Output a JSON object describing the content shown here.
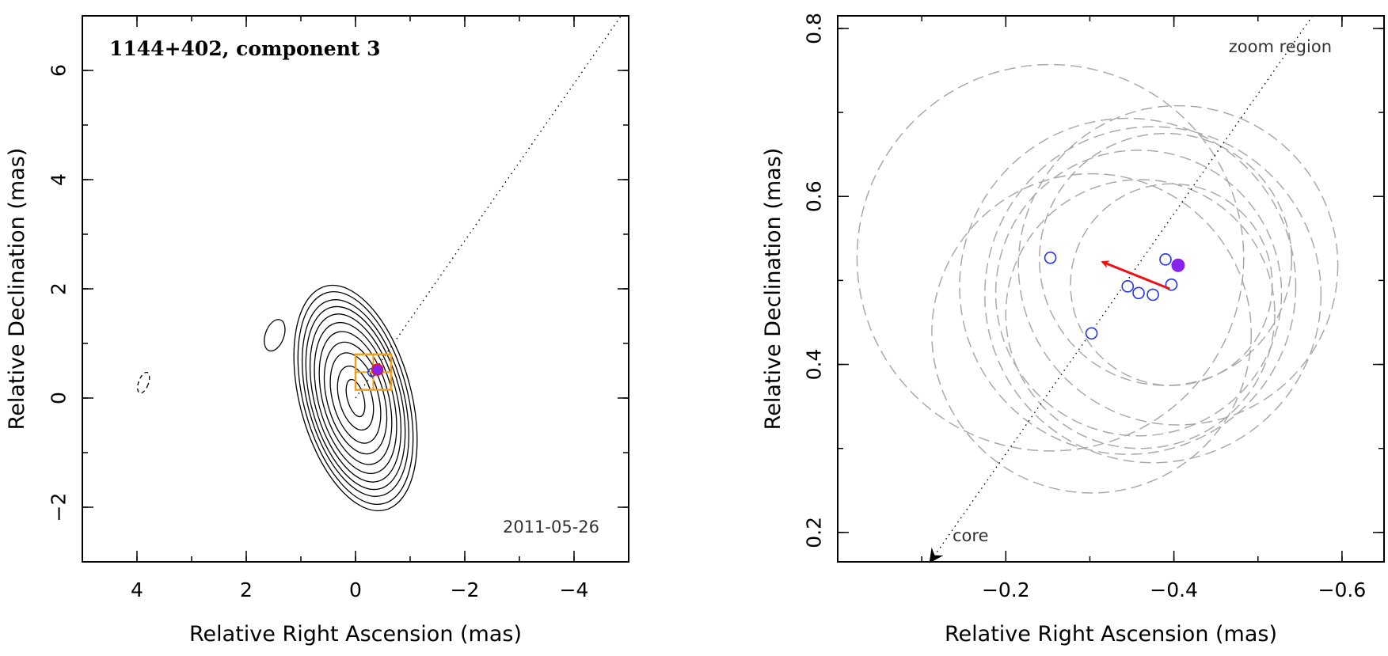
{
  "chart_data": [
    {
      "type": "scatter",
      "title": "1144+402, component 3",
      "date_label": "2011-05-26",
      "xlabel": "Relative Right Ascension (mas)",
      "ylabel": "Relative Declination (mas)",
      "xlim": [
        5,
        -5
      ],
      "ylim": [
        -3,
        7
      ],
      "x_ticks": [
        4,
        2,
        0,
        -2,
        -4
      ],
      "y_ticks": [
        -2,
        0,
        2,
        4,
        6
      ],
      "x_tick_labels": [
        "4",
        "2",
        "0",
        "−2",
        "−4"
      ],
      "y_tick_labels": [
        "−2",
        "0",
        "2",
        "4",
        "6"
      ],
      "jet_axis": {
        "from": [
          0,
          0
        ],
        "to": [
          -5,
          7.2
        ],
        "style": "dotted"
      },
      "contours": {
        "center": [
          0,
          0
        ],
        "levels": [
          {
            "rx": 0.15,
            "ry": 0.35
          },
          {
            "rx": 0.3,
            "ry": 0.6
          },
          {
            "rx": 0.42,
            "ry": 0.85
          },
          {
            "rx": 0.52,
            "ry": 1.05
          },
          {
            "rx": 0.6,
            "ry": 1.25
          },
          {
            "rx": 0.68,
            "ry": 1.42
          },
          {
            "rx": 0.75,
            "ry": 1.58
          },
          {
            "rx": 0.82,
            "ry": 1.72
          },
          {
            "rx": 0.88,
            "ry": 1.85
          },
          {
            "rx": 0.95,
            "ry": 2.0
          },
          {
            "rx": 1.02,
            "ry": 2.12
          }
        ],
        "tilt_deg": -15,
        "isolated": [
          {
            "x": 1.48,
            "y": 1.15,
            "rx": 0.17,
            "ry": 0.3,
            "dashed": false
          },
          {
            "x": 3.88,
            "y": 0.28,
            "rx": 0.09,
            "ry": 0.2,
            "dashed": true
          }
        ]
      },
      "zoom_box": {
        "x_min": -0.65,
        "x_max": 0.0,
        "y_min": 0.15,
        "y_max": 0.8,
        "color": "#f0a020"
      },
      "marker": {
        "x": -0.4,
        "y": 0.52,
        "color": "#8822ee"
      }
    },
    {
      "type": "scatter",
      "note_top": "zoom region",
      "note_core": "core",
      "xlabel": "Relative Right Ascension (mas)",
      "ylabel": "Relative Declination (mas)",
      "xlim": [
        0.0,
        -0.65
      ],
      "ylim": [
        0.165,
        0.815
      ],
      "x_ticks": [
        -0.2,
        -0.4,
        -0.6
      ],
      "y_ticks": [
        0.2,
        0.4,
        0.6,
        0.8
      ],
      "x_tick_labels": [
        "−0.2",
        "−0.4",
        "−0.6"
      ],
      "y_tick_labels": [
        "0.2",
        "0.4",
        "0.6",
        "0.8"
      ],
      "jet_axis": {
        "from": [
          -0.11,
          0.165
        ],
        "to": [
          -0.565,
          0.815
        ],
        "style": "dotted"
      },
      "points": [
        {
          "x": -0.253,
          "y": 0.527
        },
        {
          "x": -0.302,
          "y": 0.437
        },
        {
          "x": -0.345,
          "y": 0.493
        },
        {
          "x": -0.358,
          "y": 0.485
        },
        {
          "x": -0.375,
          "y": 0.483
        },
        {
          "x": -0.39,
          "y": 0.525
        },
        {
          "x": -0.397,
          "y": 0.495
        }
      ],
      "current_point": {
        "x": -0.405,
        "y": 0.518,
        "color": "#8822ee"
      },
      "error_circles": [
        {
          "x": -0.253,
          "y": 0.527,
          "r": 0.23
        },
        {
          "x": -0.302,
          "y": 0.437,
          "r": 0.19
        },
        {
          "x": -0.345,
          "y": 0.493,
          "r": 0.2
        },
        {
          "x": -0.358,
          "y": 0.485,
          "r": 0.17
        },
        {
          "x": -0.375,
          "y": 0.483,
          "r": 0.2
        },
        {
          "x": -0.39,
          "y": 0.525,
          "r": 0.15
        },
        {
          "x": -0.397,
          "y": 0.495,
          "r": 0.12
        },
        {
          "x": -0.405,
          "y": 0.518,
          "r": 0.19
        },
        {
          "x": -0.36,
          "y": 0.46,
          "r": 0.16
        }
      ],
      "motion_arrow": {
        "from": [
          -0.395,
          0.49
        ],
        "to": [
          -0.315,
          0.522
        ],
        "color": "#ee1111"
      }
    }
  ]
}
